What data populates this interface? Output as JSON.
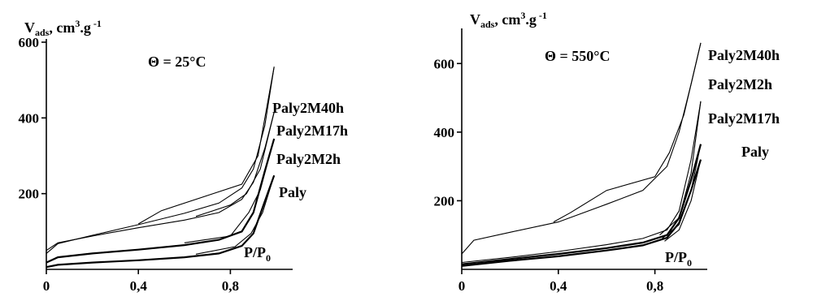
{
  "chart_data": [
    {
      "type": "line",
      "ylabel": "V",
      "ylabel_sub": "ads",
      "ylabel_unit": ", cm",
      "ylabel_sup": "3",
      "ylabel_tail": ".g",
      "ylabel_sup2": " -1",
      "xlabel": "P/P",
      "xlabel_sub": "0",
      "annotation": "Θ = 25°C",
      "xlim": [
        0,
        1.0
      ],
      "ylim": [
        0,
        600
      ],
      "x_ticks": [
        {
          "v": 0,
          "label": "0"
        },
        {
          "v": 0.4,
          "label": "0,4"
        },
        {
          "v": 0.8,
          "label": "0,8"
        }
      ],
      "y_ticks": [
        {
          "v": 200,
          "label": "200"
        },
        {
          "v": 400,
          "label": "400"
        },
        {
          "v": 600,
          "label": "600"
        }
      ],
      "series": [
        {
          "name": "Paly2M40h",
          "adsorption": [
            [
              0,
              42
            ],
            [
              0.05,
              68
            ],
            [
              0.2,
              90
            ],
            [
              0.4,
              118
            ],
            [
              0.6,
              148
            ],
            [
              0.75,
              175
            ],
            [
              0.85,
              215
            ],
            [
              0.9,
              265
            ],
            [
              0.95,
              380
            ],
            [
              0.99,
              535
            ]
          ],
          "desorption": [
            [
              0.99,
              535
            ],
            [
              0.92,
              300
            ],
            [
              0.85,
              225
            ],
            [
              0.7,
              195
            ],
            [
              0.5,
              155
            ],
            [
              0.4,
              120
            ]
          ]
        },
        {
          "name": "Paly2M17h",
          "adsorption": [
            [
              0,
              50
            ],
            [
              0.05,
              70
            ],
            [
              0.2,
              88
            ],
            [
              0.4,
              110
            ],
            [
              0.6,
              130
            ],
            [
              0.75,
              150
            ],
            [
              0.85,
              185
            ],
            [
              0.9,
              230
            ],
            [
              0.95,
              320
            ],
            [
              0.99,
              415
            ]
          ],
          "desorption": [
            [
              0.99,
              415
            ],
            [
              0.93,
              265
            ],
            [
              0.87,
              200
            ],
            [
              0.8,
              170
            ],
            [
              0.65,
              140
            ]
          ]
        },
        {
          "name": "Paly2M2h",
          "adsorption": [
            [
              0,
              18
            ],
            [
              0.05,
              32
            ],
            [
              0.2,
              42
            ],
            [
              0.4,
              52
            ],
            [
              0.6,
              64
            ],
            [
              0.75,
              78
            ],
            [
              0.85,
              100
            ],
            [
              0.9,
              150
            ],
            [
              0.95,
              260
            ],
            [
              0.99,
              345
            ]
          ],
          "desorption": [
            [
              0.99,
              345
            ],
            [
              0.93,
              210
            ],
            [
              0.88,
              150
            ],
            [
              0.8,
              88
            ],
            [
              0.6,
              70
            ]
          ]
        },
        {
          "name": "Paly",
          "adsorption": [
            [
              0,
              6
            ],
            [
              0.05,
              12
            ],
            [
              0.2,
              18
            ],
            [
              0.4,
              24
            ],
            [
              0.6,
              32
            ],
            [
              0.75,
              42
            ],
            [
              0.85,
              62
            ],
            [
              0.9,
              95
            ],
            [
              0.95,
              180
            ],
            [
              0.99,
              248
            ]
          ],
          "desorption": [
            [
              0.99,
              248
            ],
            [
              0.94,
              150
            ],
            [
              0.89,
              95
            ],
            [
              0.82,
              60
            ],
            [
              0.65,
              40
            ]
          ]
        }
      ]
    },
    {
      "type": "line",
      "ylabel": "V",
      "ylabel_sub": "ads",
      "ylabel_unit": ", cm",
      "ylabel_sup": "3",
      "ylabel_tail": ".g",
      "ylabel_sup2": " -1",
      "xlabel": "P/P",
      "xlabel_sub": "0",
      "annotation": "Θ = 550°C",
      "xlim": [
        0,
        1.0
      ],
      "ylim": [
        0,
        700
      ],
      "x_ticks": [
        {
          "v": 0,
          "label": "0"
        },
        {
          "v": 0.4,
          "label": "0,4"
        },
        {
          "v": 0.8,
          "label": "0,8"
        }
      ],
      "y_ticks": [
        {
          "v": 200,
          "label": "200"
        },
        {
          "v": 400,
          "label": "400"
        },
        {
          "v": 600,
          "label": "600"
        }
      ],
      "series": [
        {
          "name": "Paly2M40h",
          "adsorption": [
            [
              0,
              45
            ],
            [
              0.05,
              85
            ],
            [
              0.2,
              108
            ],
            [
              0.4,
              138
            ],
            [
              0.6,
              190
            ],
            [
              0.75,
              230
            ],
            [
              0.85,
              300
            ],
            [
              0.9,
              400
            ],
            [
              0.95,
              540
            ],
            [
              0.99,
              660
            ]
          ],
          "desorption": [
            [
              0.99,
              660
            ],
            [
              0.92,
              450
            ],
            [
              0.86,
              340
            ],
            [
              0.8,
              270
            ],
            [
              0.6,
              230
            ],
            [
              0.45,
              165
            ],
            [
              0.38,
              138
            ]
          ]
        },
        {
          "name": "Paly2M2h",
          "adsorption": [
            [
              0,
              20
            ],
            [
              0.2,
              35
            ],
            [
              0.4,
              52
            ],
            [
              0.6,
              72
            ],
            [
              0.75,
              90
            ],
            [
              0.85,
              115
            ],
            [
              0.9,
              170
            ],
            [
              0.95,
              320
            ],
            [
              0.99,
              490
            ]
          ],
          "desorption": [
            [
              0.99,
              490
            ],
            [
              0.95,
              280
            ],
            [
              0.9,
              150
            ],
            [
              0.82,
              100
            ]
          ]
        },
        {
          "name": "Paly2M17h",
          "adsorption": [
            [
              0,
              15
            ],
            [
              0.2,
              30
            ],
            [
              0.4,
              45
            ],
            [
              0.6,
              62
            ],
            [
              0.75,
              78
            ],
            [
              0.85,
              100
            ],
            [
              0.9,
              150
            ],
            [
              0.95,
              260
            ],
            [
              0.99,
              365
            ]
          ],
          "desorption": [
            [
              0.99,
              365
            ],
            [
              0.95,
              230
            ],
            [
              0.9,
              130
            ],
            [
              0.83,
              90
            ]
          ]
        },
        {
          "name": "Paly",
          "adsorption": [
            [
              0,
              10
            ],
            [
              0.2,
              25
            ],
            [
              0.4,
              38
            ],
            [
              0.6,
              55
            ],
            [
              0.75,
              70
            ],
            [
              0.85,
              92
            ],
            [
              0.9,
              135
            ],
            [
              0.95,
              230
            ],
            [
              0.99,
              320
            ]
          ],
          "desorption": [
            [
              0.99,
              320
            ],
            [
              0.95,
              200
            ],
            [
              0.9,
              115
            ],
            [
              0.84,
              82
            ]
          ]
        }
      ]
    }
  ]
}
